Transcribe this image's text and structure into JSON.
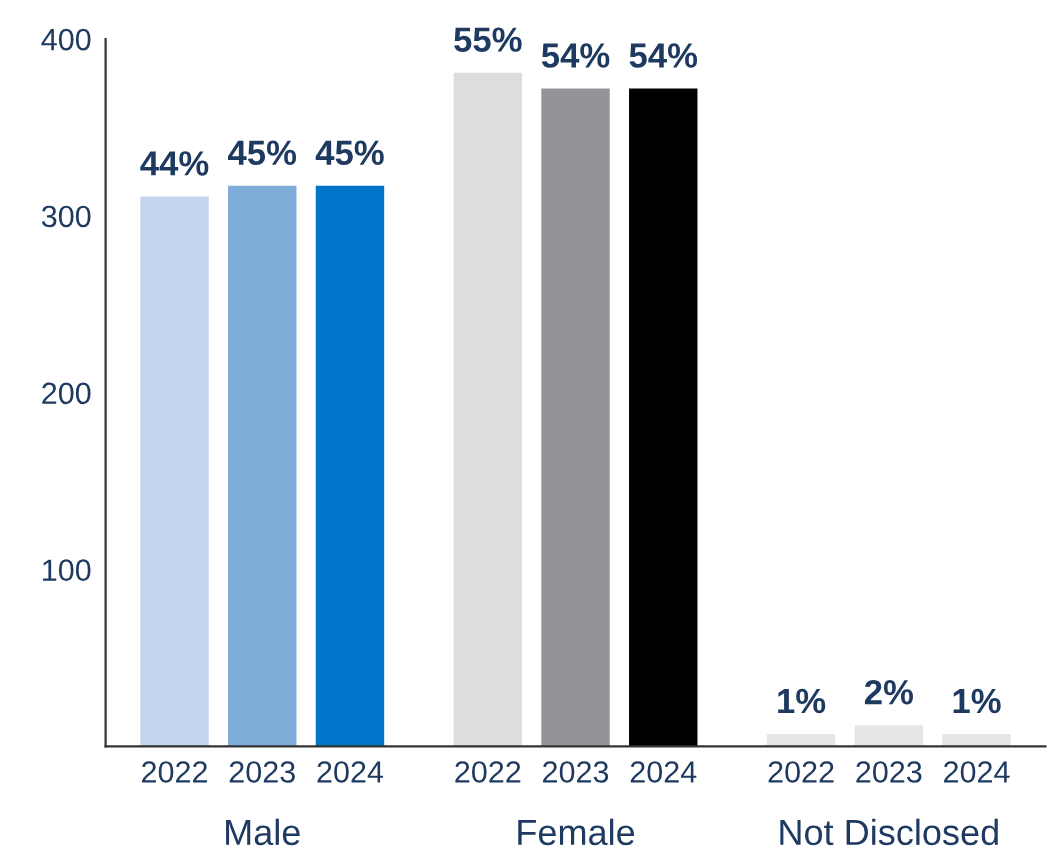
{
  "chart_data": {
    "type": "bar",
    "categories": [
      "Male",
      "Female",
      "Not Disclosed"
    ],
    "series": [
      {
        "name": "2022",
        "colors": [
          "#c3d5ec",
          "#dcdddf",
          "#e5e5e6"
        ],
        "values": [
          311,
          381,
          7
        ]
      },
      {
        "name": "2023",
        "colors": [
          "#7facd9",
          "#939498",
          "#e5e5e6"
        ],
        "values": [
          317,
          372,
          12
        ]
      },
      {
        "name": "2024",
        "colors": [
          "#0074c8",
          "#000000",
          "#e5e5e6"
        ],
        "values": [
          317,
          372,
          7
        ]
      }
    ],
    "annotations": [
      "44%",
      "45%",
      "45%",
      "55%",
      "54%",
      "54%",
      "1%",
      "2%",
      "1%"
    ],
    "ylim": [
      0,
      400
    ],
    "yticks": [
      100,
      200,
      300,
      400
    ],
    "grid": false,
    "legend": false
  }
}
